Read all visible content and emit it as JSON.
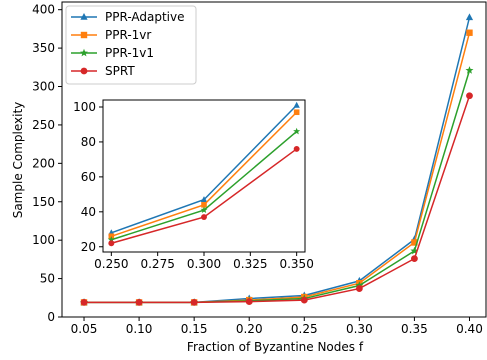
{
  "chart_data": [
    {
      "type": "line",
      "xlabel": "Fraction of Byzantine Nodes f",
      "ylabel": "Sample Complexity",
      "x": [
        0.05,
        0.1,
        0.15,
        0.2,
        0.25,
        0.3,
        0.35,
        0.4
      ],
      "xticks": [
        "0.05",
        "0.10",
        "0.15",
        "0.20",
        "0.25",
        "0.30",
        "0.35",
        "0.40"
      ],
      "yticks": [
        "0",
        "50",
        "100",
        "150",
        "200",
        "250",
        "300",
        "350",
        "400"
      ],
      "xlim": [
        0.03,
        0.415
      ],
      "ylim": [
        0,
        410
      ],
      "legend_position": "top-left",
      "grid": false,
      "series": [
        {
          "name": "PPR-Adaptive",
          "color": "#1f77b4",
          "marker": "triangle-up",
          "values": [
            19,
            19,
            19,
            24,
            28,
            47,
            101,
            390
          ]
        },
        {
          "name": "PPR-1vr",
          "color": "#ff7f0e",
          "marker": "square",
          "values": [
            19,
            19,
            19,
            22,
            26,
            44,
            97,
            370
          ]
        },
        {
          "name": "PPR-1v1",
          "color": "#2ca02c",
          "marker": "star",
          "values": [
            19,
            19,
            19,
            21,
            24,
            41,
            86,
            321
          ]
        },
        {
          "name": "SPRT",
          "color": "#d62728",
          "marker": "circle",
          "values": [
            19,
            19,
            19,
            20,
            22,
            37,
            76,
            288
          ]
        }
      ]
    },
    {
      "type": "line",
      "role": "inset",
      "x": [
        0.25,
        0.3,
        0.35
      ],
      "xticks": [
        "0.250",
        "0.275",
        "0.300",
        "0.325",
        "0.350"
      ],
      "yticks": [
        "20",
        "40",
        "60",
        "80",
        "100"
      ],
      "xlim": [
        0.2455,
        0.3545
      ],
      "ylim": [
        17,
        104
      ],
      "grid": false,
      "series": [
        {
          "name": "PPR-Adaptive",
          "color": "#1f77b4",
          "marker": "triangle-up",
          "values": [
            28,
            47,
            101
          ]
        },
        {
          "name": "PPR-1vr",
          "color": "#ff7f0e",
          "marker": "square",
          "values": [
            26,
            44,
            97
          ]
        },
        {
          "name": "PPR-1v1",
          "color": "#2ca02c",
          "marker": "star",
          "values": [
            24,
            41,
            86
          ]
        },
        {
          "name": "SPRT",
          "color": "#d62728",
          "marker": "circle",
          "values": [
            22,
            37,
            76
          ]
        }
      ]
    }
  ]
}
